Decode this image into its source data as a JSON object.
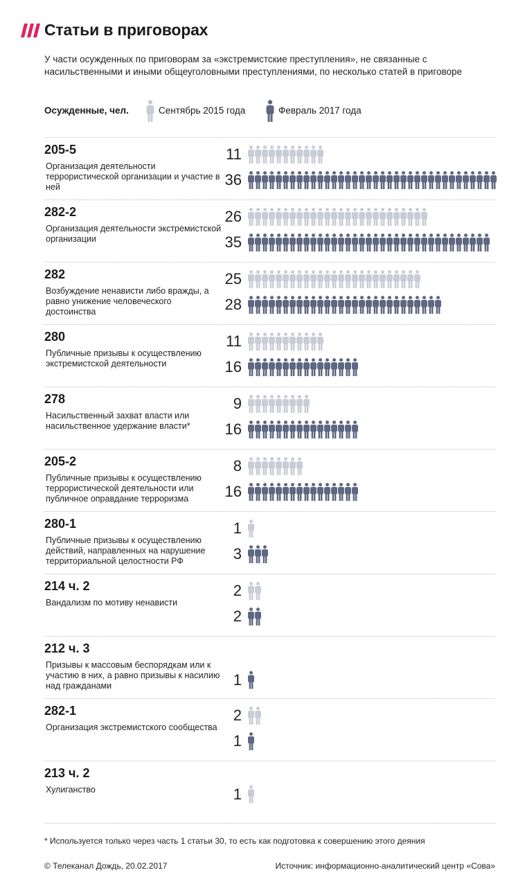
{
  "header": {
    "title": "Статьи в приговорах",
    "subtitle": "У части осужденных по приговорам за «экстремистские преступления», не связанные с насильственными и иными общеуголовными преступлениями, по несколько статей в приговоре"
  },
  "legend": {
    "label": "Осужденные, чел.",
    "items": [
      "Сентябрь 2015 года",
      "Февраль 2017 года"
    ]
  },
  "colors": {
    "sep2015": "#c8ccd6",
    "feb2017": "#5e6781",
    "accent": "#e0245e"
  },
  "chart_data": {
    "type": "pictogram",
    "unit": "Осужденные, чел.",
    "series_names": [
      "Сентябрь 2015 года",
      "Февраль 2017 года"
    ],
    "rows": [
      {
        "code": "205-5",
        "desc": "Организация деятельности террористической организации и участие в ней",
        "values": [
          11,
          36
        ]
      },
      {
        "code": "282-2",
        "desc": "Организация деятельности экстремистской организации",
        "values": [
          26,
          35
        ]
      },
      {
        "code": "282",
        "desc": "Возбуждение ненависти либо вражды, а равно унижение человеческого достоинства",
        "values": [
          25,
          28
        ]
      },
      {
        "code": "280",
        "desc": "Публичные призывы к осуществлению экстремистской деятельности",
        "values": [
          11,
          16
        ]
      },
      {
        "code": "278",
        "desc": "Насильственный захват власти или насильственное удержание власти*",
        "values": [
          9,
          16
        ]
      },
      {
        "code": "205-2",
        "desc": "Публичные призывы к осуществлению террористической деятельности или публичное оправдание терроризма",
        "values": [
          8,
          16
        ]
      },
      {
        "code": "280-1",
        "desc": "Публичные призывы к осуществлению действий, направленных на нарушение территориальной целостности РФ",
        "values": [
          1,
          3
        ]
      },
      {
        "code": "214 ч. 2",
        "desc": "Вандализм по мотиву ненависти",
        "values": [
          2,
          2
        ]
      },
      {
        "code": "212 ч. 3",
        "desc": "Призывы к массовым беспорядкам или к участию в них, а равно призывы к насилию над гражданами",
        "values": [
          null,
          1
        ]
      },
      {
        "code": "282-1",
        "desc": "Организация экстремистского сообщества",
        "values": [
          2,
          1
        ]
      },
      {
        "code": "213 ч. 2",
        "desc": "Хулиганство",
        "values": [
          1,
          null
        ]
      }
    ]
  },
  "footnote": "* Используется только через часть 1 статьи 30, то есть как подготовка к совершению этого деяния",
  "footer": {
    "copyright": "© Телеканал Дождь, 20.02.2017",
    "source": "Источник: информационно-аналитический центр «Сова»"
  }
}
